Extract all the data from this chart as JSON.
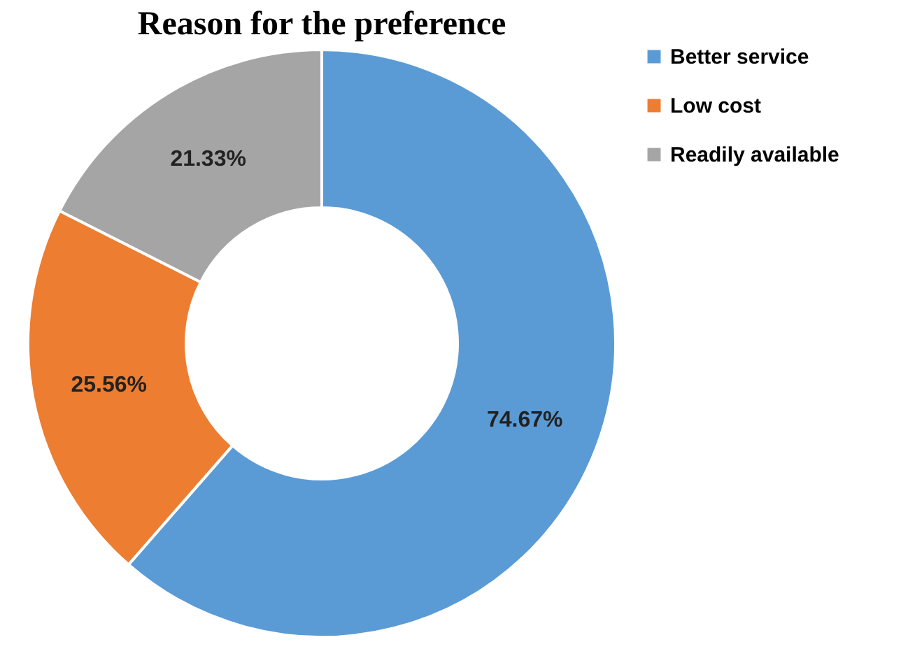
{
  "chart_data": {
    "type": "donut",
    "title": "Reason for the preference",
    "categories": [
      "Better service",
      "Low cost",
      "Readily available"
    ],
    "values": [
      74.67,
      25.56,
      21.33
    ],
    "colors": [
      "#5b9bd5",
      "#ed7d31",
      "#a5a5a5"
    ],
    "value_labels": [
      "74.67%",
      "25.56%",
      "21.33%"
    ],
    "legend": "right"
  }
}
